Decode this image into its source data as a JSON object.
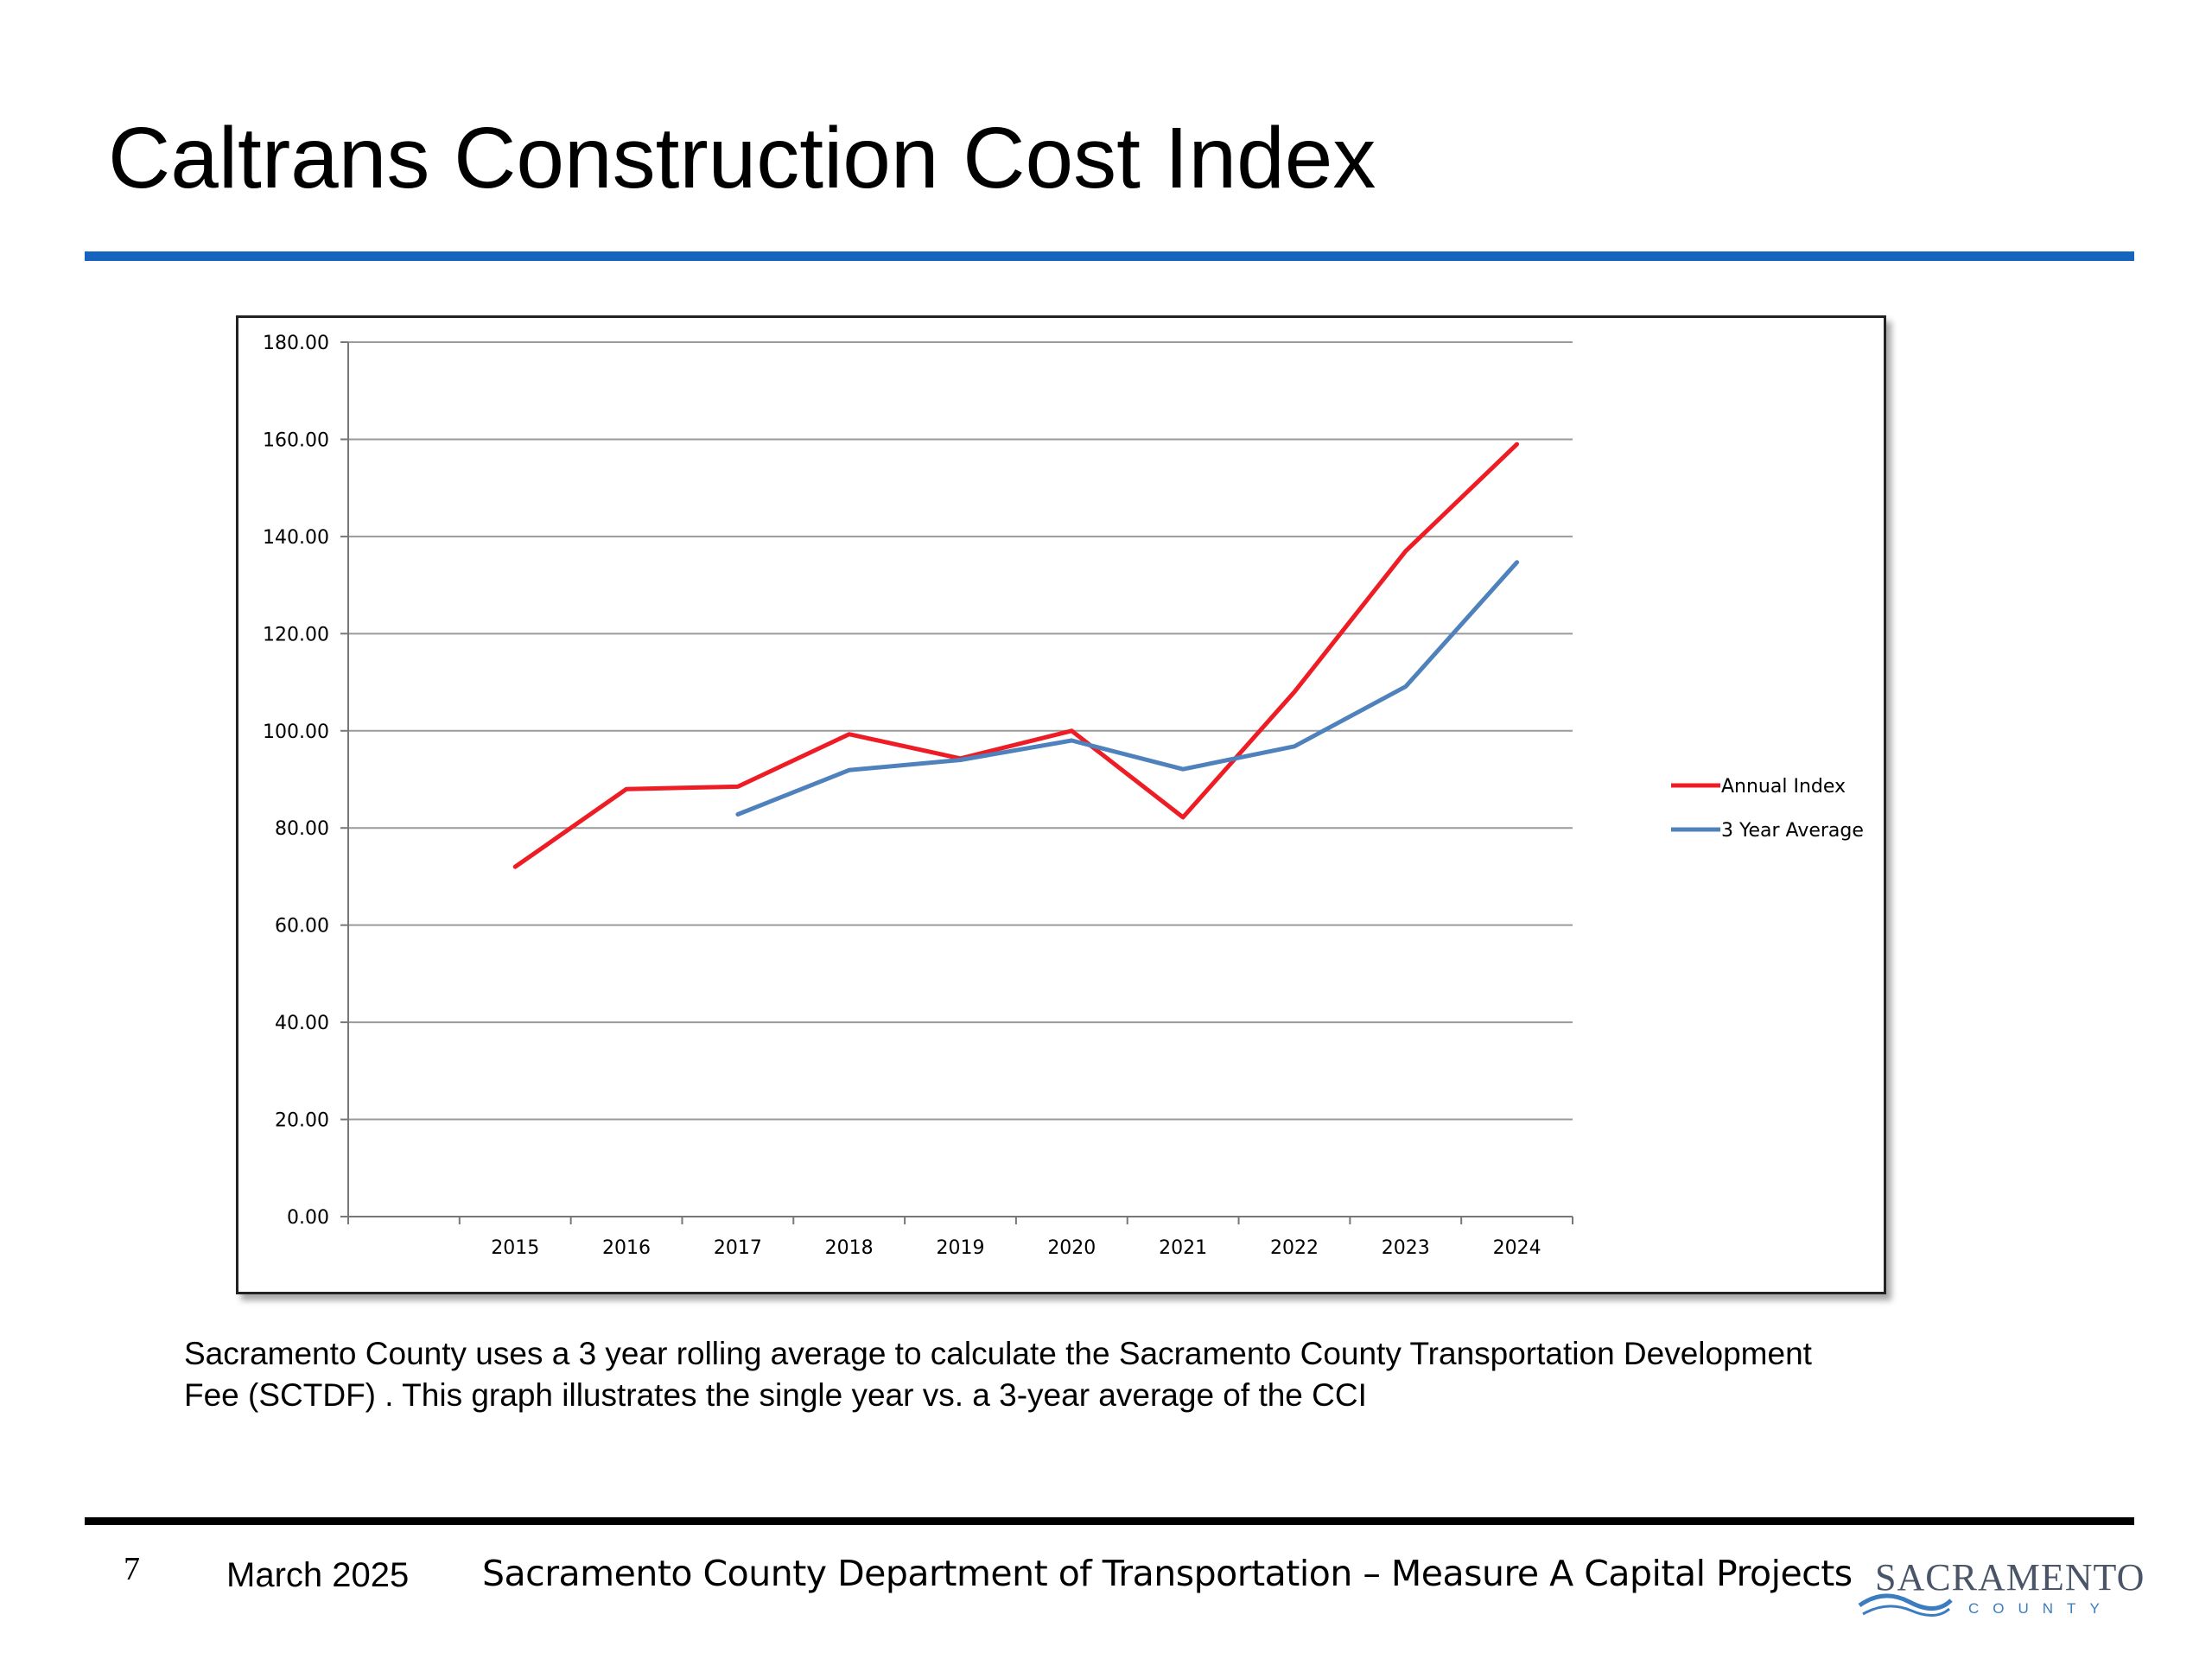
{
  "slide": {
    "title": "Caltrans Construction Cost Index",
    "caption": "Sacramento County uses a 3 year rolling average to calculate the Sacramento County Transportation Development\nFee  (SCTDF) .  This graph illustrates the single year vs. a 3-year average of the CCI",
    "page_number": "7",
    "date": "March 2025",
    "department": "Sacramento County Department of Transportation – Measure A Capital Projects",
    "logo": {
      "word": "SACRAMENTO",
      "sub": "COUNTY"
    },
    "colors": {
      "title_rule": "#1565c0",
      "footer_rule": "#000000"
    }
  },
  "chart_data": {
    "type": "line",
    "categories": [
      "2015",
      "2016",
      "2017",
      "2018",
      "2019",
      "2020",
      "2021",
      "2022",
      "2023",
      "2024"
    ],
    "series": [
      {
        "name": "Annual Index",
        "color": "#ee1c24",
        "values": [
          72,
          88,
          88.5,
          99.3,
          94.3,
          100,
          82.2,
          108,
          137,
          159
        ]
      },
      {
        "name": "3 Year Average",
        "color": "#4f81bd",
        "values": [
          null,
          null,
          82.8,
          91.9,
          94,
          98,
          92.1,
          96.8,
          109.1,
          134.7
        ]
      }
    ],
    "ylim": [
      0,
      180
    ],
    "ytick_step": 20,
    "ytick_labels": [
      "0.00",
      "20.00",
      "40.00",
      "60.00",
      "80.00",
      "100.00",
      "120.00",
      "140.00",
      "160.00",
      "180.00"
    ],
    "grid": true,
    "legend": "right",
    "xlabel": "",
    "ylabel": ""
  }
}
